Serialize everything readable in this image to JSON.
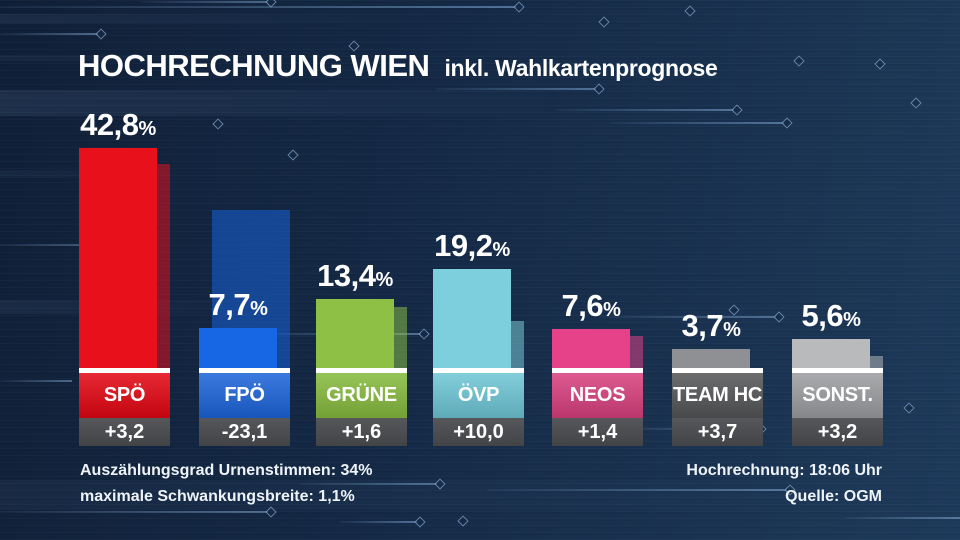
{
  "header": {
    "title": "HOCHRECHNUNG WIEN",
    "subtitle": "inkl. Wahlkartenprognose"
  },
  "chart_data": {
    "type": "bar",
    "title": "HOCHRECHNUNG WIEN inkl. Wahlkartenprognose",
    "unit": "percent",
    "categories": [
      "SPÖ",
      "FPÖ",
      "GRÜNE",
      "ÖVP",
      "NEOS",
      "TEAM HC",
      "SONST."
    ],
    "series": [
      {
        "name": "Hochrechnung",
        "values": [
          42.8,
          7.7,
          13.4,
          19.2,
          7.6,
          3.7,
          5.6
        ]
      },
      {
        "name": "Vorwahl-Schattenbalken",
        "values": [
          39.6,
          30.8,
          11.8,
          9.2,
          6.2,
          0,
          2.4
        ]
      }
    ],
    "value_labels": [
      "42,8",
      "7,7",
      "13,4",
      "19,2",
      "7,6",
      "3,7",
      "5,6"
    ],
    "percent_sign": "%",
    "change_labels": [
      "+3,2",
      "-23,1",
      "+1,6",
      "+10,0",
      "+1,4",
      "+3,7",
      "+3,2"
    ],
    "bar_colors": [
      "#e8101b",
      "#1766e3",
      "#8dc045",
      "#7ecfdd",
      "#e6428a",
      "#8e9093",
      "#b8babc"
    ],
    "label_colors": [
      "#e30613",
      "#1c64da",
      "#86bb3e",
      "#6ec6d6",
      "#d8407e",
      "#545557",
      "#9b9da0"
    ],
    "change_box_color": "#4b4d50",
    "ylim": [
      0,
      45
    ],
    "grid": false,
    "legend": false
  },
  "footer": {
    "left_line1": "Auszählungsgrad Urnenstimmen: 34%",
    "left_line2": "maximale Schwankungsbreite: 1,1%",
    "right_line1": "Hochrechnung: 18:06 Uhr",
    "right_line2": "Quelle: OGM"
  },
  "colors": {
    "background": "#16294a",
    "baseline": "#ffffff",
    "text": "#ffffff"
  }
}
